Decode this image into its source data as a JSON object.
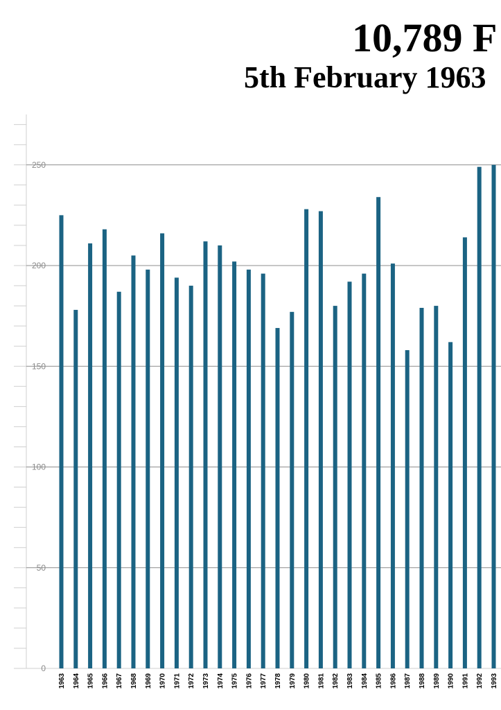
{
  "header": {
    "title": "10,789  F",
    "subtitle": "5th February 1963"
  },
  "colors": {
    "bar": "#1b6383",
    "gridline": "#8c8c8c",
    "minor_tick": "#cfcfcf"
  },
  "chart_data": {
    "type": "bar",
    "categories": [
      "1963",
      "1964",
      "1965",
      "1966",
      "1967",
      "1968",
      "1969",
      "1970",
      "1971",
      "1972",
      "1973",
      "1974",
      "1975",
      "1976",
      "1977",
      "1978",
      "1979",
      "1980",
      "1981",
      "1982",
      "1983",
      "1984",
      "1985",
      "1986",
      "1987",
      "1988",
      "1989",
      "1990",
      "1991",
      "1992",
      "1993"
    ],
    "values": [
      225,
      178,
      211,
      218,
      187,
      205,
      198,
      216,
      194,
      190,
      212,
      210,
      202,
      198,
      196,
      169,
      177,
      228,
      227,
      180,
      192,
      196,
      234,
      201,
      158,
      179,
      180,
      162,
      214,
      249,
      250
    ],
    "ylim": [
      0,
      275
    ],
    "yticks": [
      0,
      50,
      100,
      150,
      200,
      250
    ],
    "grid": true,
    "legend": "none"
  }
}
